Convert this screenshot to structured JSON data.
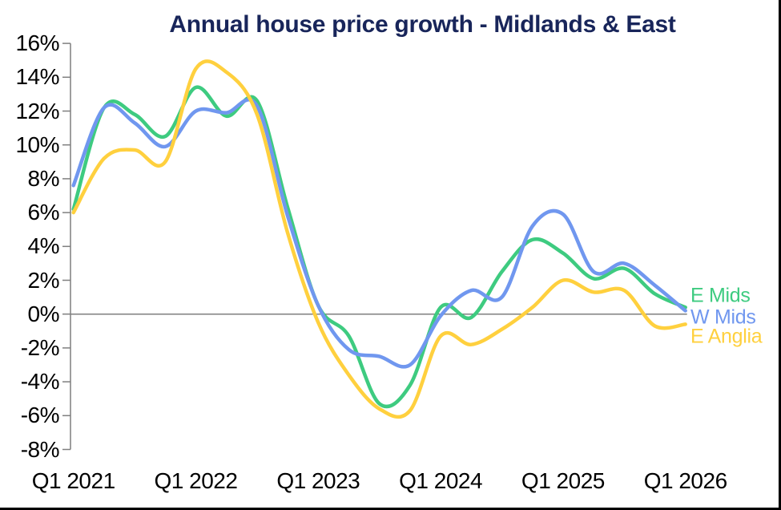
{
  "page": {
    "background": "#ffffff",
    "frame_border_color": "#000000"
  },
  "chart_data": {
    "type": "line",
    "title": "Annual house price growth - Midlands & East",
    "title_color": "#18255A",
    "axis_color": "#7f7f7f",
    "tick_label_color": "#000000",
    "grid": "zero-line-only",
    "legend_position": "right-of-line-ends",
    "ylim": [
      -8,
      16
    ],
    "y_tick_labels": [
      "16%",
      "14%",
      "12%",
      "10%",
      "8%",
      "6%",
      "4%",
      "2%",
      "0%",
      "-2%",
      "-4%",
      "-6%",
      "-8%"
    ],
    "y_tick_values": [
      16,
      14,
      12,
      10,
      8,
      6,
      4,
      2,
      0,
      -2,
      -4,
      -6,
      -8
    ],
    "x_axis_tick_labels": [
      "Q1 2021",
      "Q1 2022",
      "Q1 2023",
      "Q1 2024",
      "Q1 2025",
      "Q1 2026"
    ],
    "x": [
      "Q1 2021",
      "Q2 2021",
      "Q3 2021",
      "Q4 2021",
      "Q1 2022",
      "Q2 2022",
      "Q3 2022",
      "Q4 2022",
      "Q1 2023",
      "Q2 2023",
      "Q3 2023",
      "Q4 2023",
      "Q1 2024",
      "Q2 2024",
      "Q3 2024",
      "Q4 2024",
      "Q1 2025",
      "Q2 2025",
      "Q3 2025",
      "Q4 2025",
      "Q1 2026"
    ],
    "series": [
      {
        "name": "E Mids",
        "color": "#3ECB80",
        "values": [
          6.2,
          12.2,
          11.8,
          10.5,
          13.4,
          11.7,
          12.6,
          6.3,
          0.5,
          -1.3,
          -5.3,
          -4.2,
          0.4,
          -0.2,
          2.5,
          4.4,
          3.6,
          2.1,
          2.7,
          1.2,
          0.4
        ]
      },
      {
        "name": "W Mids",
        "color": "#7097EF",
        "values": [
          7.6,
          12.2,
          11.3,
          9.9,
          12.0,
          11.9,
          12.3,
          5.8,
          0.5,
          -2.1,
          -2.5,
          -3.0,
          -0.1,
          1.4,
          1.0,
          5.2,
          5.9,
          2.5,
          3.0,
          1.7,
          0.2
        ]
      },
      {
        "name": "E Anglia",
        "color": "#FFD03E",
        "values": [
          6.0,
          9.2,
          9.7,
          9.0,
          14.5,
          14.3,
          11.8,
          4.8,
          -0.5,
          -3.6,
          -5.6,
          -5.7,
          -1.3,
          -1.8,
          -0.9,
          0.4,
          2.0,
          1.3,
          1.4,
          -0.7,
          -0.6
        ]
      }
    ]
  }
}
